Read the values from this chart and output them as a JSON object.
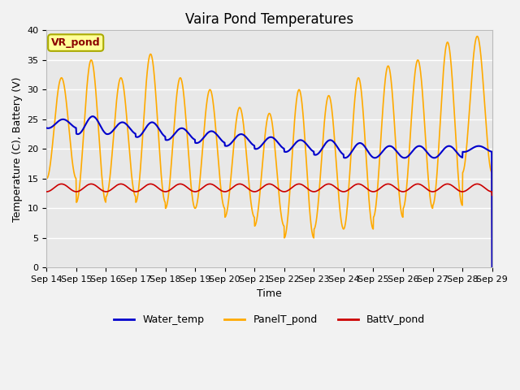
{
  "title": "Vaira Pond Temperatures",
  "xlabel": "Time",
  "ylabel": "Temperature (C), Battery (V)",
  "ylim": [
    0,
    40
  ],
  "yticks": [
    0,
    5,
    10,
    15,
    20,
    25,
    30,
    35,
    40
  ],
  "xtick_labels": [
    "Sep 14",
    "Sep 15",
    "Sep 16",
    "Sep 17",
    "Sep 18",
    "Sep 19",
    "Sep 20",
    "Sep 21",
    "Sep 22",
    "Sep 23",
    "Sep 24",
    "Sep 25",
    "Sep 26",
    "Sep 27",
    "Sep 28",
    "Sep 29"
  ],
  "water_color": "#0000cc",
  "panel_color": "#ffaa00",
  "batt_color": "#cc0000",
  "annotation_text": "VR_pond",
  "annotation_bg": "#ffff99",
  "annotation_edge": "#aaaa00",
  "fig_bg": "#f2f2f2",
  "plot_bg": "#e8e8e8",
  "grid_color": "#ffffff",
  "legend_entries": [
    "Water_temp",
    "PanelT_pond",
    "BattV_pond"
  ],
  "title_fontsize": 12,
  "label_fontsize": 9,
  "tick_fontsize": 8,
  "panel_peaks": [
    32,
    35,
    32,
    36,
    32,
    30,
    27,
    26,
    30,
    29,
    32,
    34,
    35,
    38,
    39
  ],
  "panel_troughs": [
    15,
    11,
    12,
    11,
    10,
    10,
    8.5,
    7,
    5,
    6.5,
    6.5,
    8.5,
    10,
    10.5,
    16
  ],
  "water_peaks": [
    25,
    25.5,
    24.5,
    24.5,
    23.5,
    23,
    22.5,
    22,
    21.5,
    21.5,
    21,
    20.5,
    20.5,
    20.5,
    20.5
  ],
  "water_troughs": [
    23.5,
    22.5,
    22.5,
    22,
    21.5,
    21,
    20.5,
    20,
    19.5,
    19,
    18.5,
    18.5,
    18.5,
    18.5,
    19.5
  ],
  "batt_base": 12.8,
  "batt_peak_add": 1.3
}
